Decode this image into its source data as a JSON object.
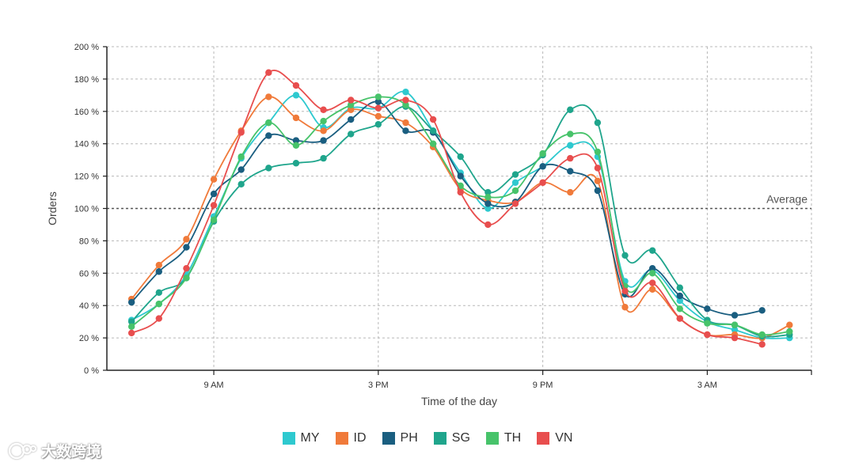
{
  "chart_data": {
    "type": "line",
    "title": "",
    "xlabel": "Time of the day",
    "ylabel": "Orders",
    "ylim": [
      0,
      200
    ],
    "y_ticks": [
      0,
      20,
      40,
      60,
      80,
      100,
      120,
      140,
      160,
      180,
      200
    ],
    "y_tick_suffix": " %",
    "x": [
      6,
      7,
      8,
      9,
      10,
      11,
      12,
      13,
      14,
      15,
      16,
      17,
      18,
      19,
      20,
      21,
      22,
      23,
      24,
      25,
      26,
      27,
      28,
      29,
      30
    ],
    "x_ticks": [
      {
        "value": 9,
        "label": "9 AM"
      },
      {
        "value": 15,
        "label": "3 PM"
      },
      {
        "value": 21,
        "label": "9 PM"
      },
      {
        "value": 27,
        "label": "3 AM"
      }
    ],
    "xlim": [
      5.1,
      30.8
    ],
    "grid": true,
    "reference_line": {
      "value": 100,
      "label": "Average"
    },
    "series": [
      {
        "name": "MY",
        "color": "#2ec9cf",
        "values": [
          31,
          41,
          59,
          95,
          131,
          153,
          170,
          150,
          162,
          162,
          172,
          148,
          122,
          100,
          116,
          126,
          139,
          132,
          55,
          62,
          43,
          30,
          25,
          20,
          20
        ]
      },
      {
        "name": "ID",
        "color": "#f07a3a",
        "values": [
          44,
          65,
          81,
          118,
          148,
          169,
          156,
          148,
          161,
          157,
          153,
          138,
          112,
          105,
          104,
          116,
          110,
          117,
          39,
          50,
          32,
          22,
          22,
          20,
          28
        ]
      },
      {
        "name": "PH",
        "color": "#1a5e80",
        "values": [
          42,
          61,
          76,
          109,
          124,
          145,
          142,
          142,
          155,
          166,
          148,
          147,
          120,
          103,
          104,
          126,
          123,
          111,
          47,
          63,
          46,
          38,
          34,
          37,
          null
        ]
      },
      {
        "name": "SG",
        "color": "#1fa58c",
        "values": [
          30,
          48,
          57,
          92,
          115,
          125,
          128,
          131,
          146,
          152,
          163,
          148,
          132,
          110,
          121,
          133,
          161,
          153,
          71,
          74,
          51,
          31,
          28,
          21,
          22
        ]
      },
      {
        "name": "TH",
        "color": "#47c36a",
        "values": [
          27,
          41,
          57,
          93,
          132,
          153,
          139,
          154,
          164,
          169,
          164,
          140,
          114,
          107,
          111,
          134,
          146,
          135,
          52,
          60,
          38,
          29,
          28,
          22,
          24
        ]
      },
      {
        "name": "VN",
        "color": "#e84e4e",
        "values": [
          23,
          32,
          63,
          102,
          147,
          184,
          176,
          161,
          167,
          162,
          167,
          155,
          110,
          90,
          103,
          116,
          131,
          125,
          49,
          54,
          32,
          22,
          20,
          16,
          null
        ]
      }
    ]
  },
  "watermark": {
    "text": "大数跨境"
  }
}
